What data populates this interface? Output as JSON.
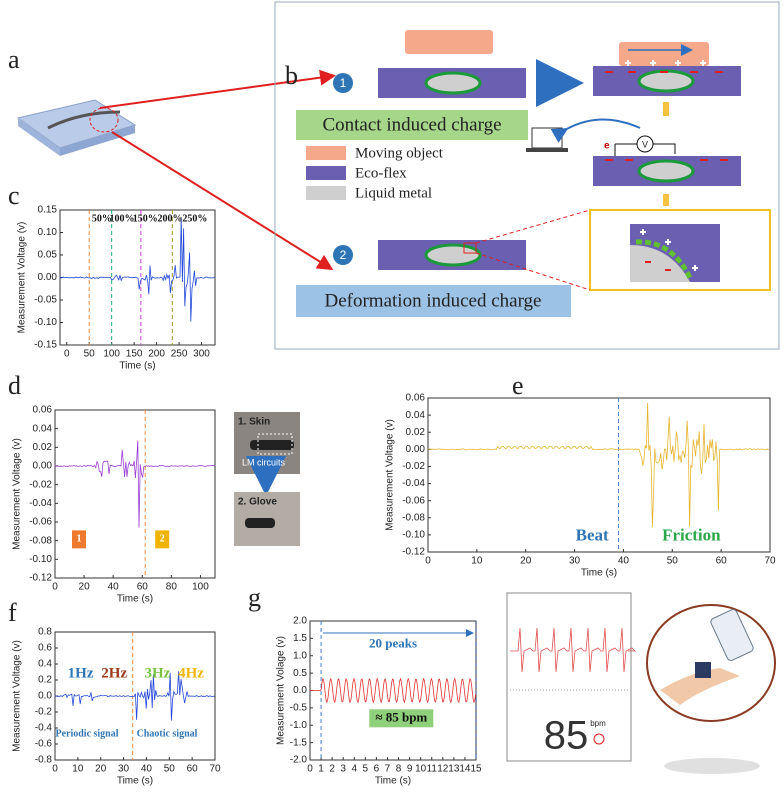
{
  "figure": {
    "labels": {
      "a": "a",
      "b": "b"
    },
    "diagram": {
      "step1": "1",
      "step2": "2",
      "contact": "Contact induced charge",
      "deformation": "Deformation induced charge",
      "legend": [
        "Moving object",
        "Eco-flex",
        "Liquid metal"
      ],
      "voltmeter": "V",
      "electron": "e"
    },
    "inset_d": {
      "skin": "1. Skin",
      "circuits": "LM circuits",
      "glove": "2. Glove"
    },
    "phone": {
      "rate": "85",
      "unit": "bpm"
    }
  },
  "chart_data": [
    {
      "label": "c",
      "type": "line",
      "xlabel": "Time (s)",
      "ylabel": "Measurement Voltage (v)",
      "color": "#2347d8",
      "xlim": [
        -15,
        330
      ],
      "ylim": [
        -0.15,
        0.15
      ],
      "xticks": [
        0,
        50,
        100,
        150,
        200,
        250,
        300
      ],
      "yticks": [
        -0.15,
        {
          "value": -0.1,
          "label": "-0.10"
        },
        -0.05,
        {
          "value": 0,
          "label": "0.00"
        },
        0.05,
        {
          "value": 0.1,
          "label": "0.10"
        },
        0.15
      ],
      "markers": [
        50,
        100,
        165,
        235
      ],
      "marker_colors": [
        "#f08a3c",
        "#22b07a",
        "#c040d0",
        "#9a9a20"
      ],
      "annotations": [
        {
          "text": "50%",
          "color": "#111"
        },
        {
          "text": "100%",
          "color": "#111"
        },
        {
          "text": "150%",
          "color": "#111"
        },
        {
          "text": "200%",
          "color": "#111"
        },
        {
          "text": "250%",
          "color": "#111"
        }
      ]
    },
    {
      "label": "d",
      "type": "line",
      "xlabel": "Time (s)",
      "ylabel": "Measurement Voltage (v)",
      "color": "#9a3ed6",
      "xlim": [
        0,
        110
      ],
      "ylim": [
        -0.12,
        0.06
      ],
      "xticks": [
        0,
        20,
        40,
        60,
        80,
        100
      ],
      "yticks": [
        0.06,
        0.04,
        0.02,
        {
          "value": 0,
          "label": "0.00"
        },
        -0.02,
        -0.04,
        -0.06,
        -0.08,
        {
          "value": -0.1,
          "label": "-0.10"
        },
        -0.12
      ],
      "markers": [
        62
      ],
      "marker_colors": [
        "#f08a3c"
      ],
      "annotations": [
        {
          "text": "1",
          "color": "#fff",
          "box": "#ee7a30"
        },
        {
          "text": "2",
          "color": "#fff",
          "box": "#f0b400"
        }
      ]
    },
    {
      "label": "e",
      "type": "line",
      "xlabel": "Time (s)",
      "ylabel": "Measurement Voltage (v)",
      "color": "#e6b530",
      "xlim": [
        0,
        70
      ],
      "ylim": [
        -0.12,
        0.06
      ],
      "xticks": [
        0,
        10,
        20,
        30,
        40,
        50,
        60,
        70
      ],
      "yticks": [
        0.06,
        0.04,
        0.02,
        {
          "value": 0,
          "label": "0.00"
        },
        -0.02,
        -0.04,
        -0.06,
        -0.08,
        {
          "value": -0.1,
          "label": "-0.10"
        },
        -0.12
      ],
      "markers": [
        39
      ],
      "marker_colors": [
        "#4a7fd0"
      ],
      "annotations": [
        {
          "text": "Beat",
          "color": "#2e75b6"
        },
        {
          "text": "Friction",
          "color": "#2aa84a"
        }
      ]
    },
    {
      "label": "f",
      "type": "line",
      "xlabel": "Time (s)",
      "ylabel": "Measurement Voltage (v)",
      "color": "#2347d8",
      "xlim": [
        0,
        70
      ],
      "ylim": [
        -0.8,
        0.8
      ],
      "xticks": [
        0,
        10,
        20,
        30,
        40,
        50,
        60,
        70
      ],
      "yticks": [
        0.8,
        0.6,
        0.4,
        0.2,
        {
          "value": 0,
          "label": "0.0"
        },
        -0.2,
        -0.4,
        -0.6,
        -0.8
      ],
      "markers": [
        34
      ],
      "marker_colors": [
        "#f08a3c"
      ],
      "annotations": [
        {
          "text": "1Hz",
          "color": "#2e75b6"
        },
        {
          "text": "2Hz",
          "color": "#9a3a1a"
        },
        {
          "text": "3Hz",
          "color": "#7ac142"
        },
        {
          "text": "4Hz",
          "color": "#f0b400"
        },
        {
          "text": "Periodic signal",
          "color": "#2e75b6"
        },
        {
          "text": "Chaotic signal",
          "color": "#2e75b6"
        }
      ]
    },
    {
      "label": "g",
      "type": "line",
      "xlabel": "Time (s)",
      "ylabel": "Measurement Volage (v)",
      "color": "#e03030",
      "xlim": [
        0,
        15
      ],
      "ylim": [
        -2,
        2
      ],
      "xticks": [
        0,
        1,
        2,
        3,
        4,
        5,
        6,
        7,
        8,
        9,
        10,
        11,
        12,
        13,
        14,
        15
      ],
      "yticks": [
        {
          "value": 2,
          "label": "2.0"
        },
        1.5,
        {
          "value": 1,
          "label": "1.0"
        },
        0.5,
        {
          "value": 0,
          "label": "0.0"
        },
        -0.5,
        {
          "value": -1,
          "label": "-1.0"
        },
        -1.5,
        {
          "value": -2,
          "label": "-2.0"
        }
      ],
      "markers": [
        1,
        15
      ],
      "marker_colors": [
        "#4a7fd0",
        "#1a3a80"
      ],
      "annotations": [
        {
          "text": "20 peaks",
          "color": "#2e75b6"
        },
        {
          "text": "≈ 85 bpm",
          "color": "#111",
          "box": "#8fd07a"
        }
      ]
    }
  ]
}
